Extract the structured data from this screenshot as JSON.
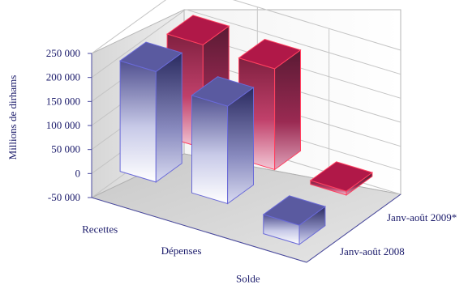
{
  "chart_data": {
    "type": "bar",
    "style": "3d-clustered-columns",
    "categories": [
      "Recettes",
      "Dépenses",
      "Solde"
    ],
    "series": [
      {
        "name": "Janv-août 2008",
        "values": [
          230000,
          203000,
          -40000
        ],
        "color": "#7070c8"
      },
      {
        "name": "Janv-août 2009*",
        "values": [
          215000,
          210000,
          -8000
        ],
        "color": "#c01040"
      }
    ],
    "ylabel": "Millions de dirhams",
    "ylim": [
      -50000,
      250000
    ],
    "y_ticks": [
      "-50 000",
      "0",
      "50 000",
      "100 000",
      "150 000",
      "200 000",
      "250 000"
    ],
    "grid": true,
    "legend": "depth-axis-right"
  }
}
